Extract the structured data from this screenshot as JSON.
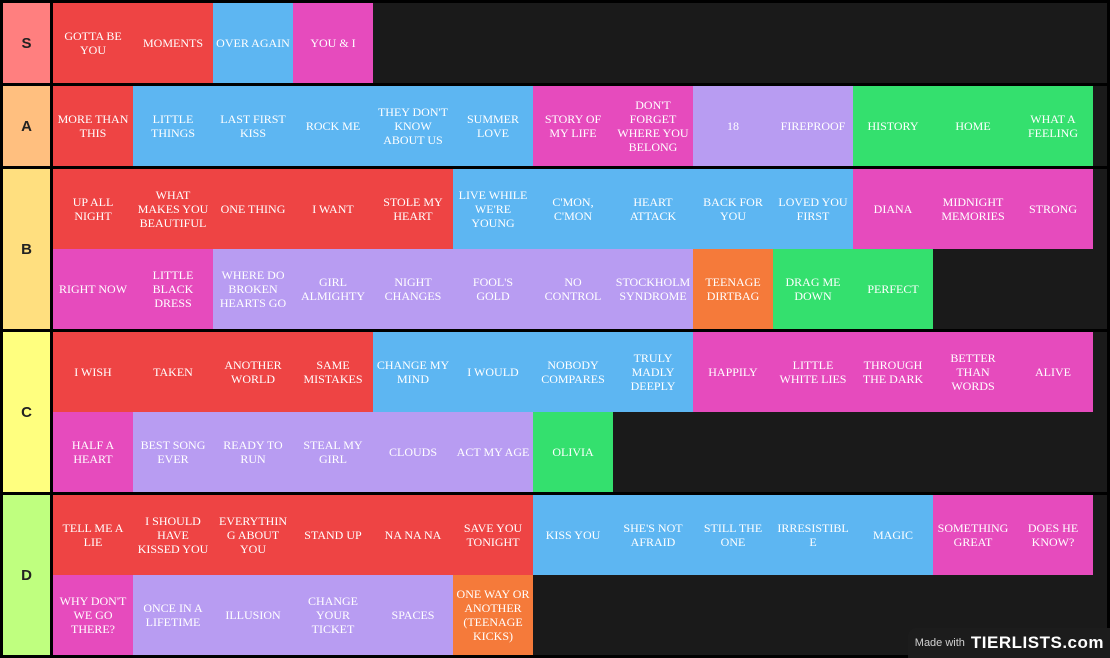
{
  "colors": {
    "red": "#ee4444",
    "blue": "#5db6f2",
    "pink": "#e64bbd",
    "purple": "#b89cf2",
    "green": "#34e06e",
    "orange": "#f57a3a"
  },
  "tiers": [
    {
      "label": "S",
      "color": "#ff7f7f",
      "items": [
        {
          "text": "GOTTA BE YOU",
          "color": "red"
        },
        {
          "text": "MOMENTS",
          "color": "red"
        },
        {
          "text": "OVER AGAIN",
          "color": "blue"
        },
        {
          "text": "YOU & I",
          "color": "pink"
        }
      ]
    },
    {
      "label": "A",
      "color": "#ffbf7f",
      "items": [
        {
          "text": "MORE THAN THIS",
          "color": "red"
        },
        {
          "text": "LITTLE THINGS",
          "color": "blue"
        },
        {
          "text": "LAST FIRST KISS",
          "color": "blue"
        },
        {
          "text": "ROCK ME",
          "color": "blue"
        },
        {
          "text": "THEY DON'T KNOW ABOUT US",
          "color": "blue"
        },
        {
          "text": "SUMMER LOVE",
          "color": "blue"
        },
        {
          "text": "STORY OF MY LIFE",
          "color": "pink"
        },
        {
          "text": "DON'T FORGET WHERE YOU BELONG",
          "color": "pink"
        },
        {
          "text": "18",
          "color": "purple"
        },
        {
          "text": "FIREPROOF",
          "color": "purple"
        },
        {
          "text": "HISTORY",
          "color": "green"
        },
        {
          "text": "HOME",
          "color": "green"
        },
        {
          "text": "WHAT A FEELING",
          "color": "green"
        }
      ]
    },
    {
      "label": "B",
      "color": "#ffdf7f",
      "items": [
        {
          "text": "UP ALL NIGHT",
          "color": "red"
        },
        {
          "text": "WHAT MAKES YOU BEAUTIFUL",
          "color": "red"
        },
        {
          "text": "ONE THING",
          "color": "red"
        },
        {
          "text": "I WANT",
          "color": "red"
        },
        {
          "text": "STOLE MY HEART",
          "color": "red"
        },
        {
          "text": "LIVE WHILE WE'RE YOUNG",
          "color": "blue"
        },
        {
          "text": "C'MON, C'MON",
          "color": "blue"
        },
        {
          "text": "HEART ATTACK",
          "color": "blue"
        },
        {
          "text": "BACK FOR YOU",
          "color": "blue"
        },
        {
          "text": "LOVED YOU FIRST",
          "color": "blue"
        },
        {
          "text": "DIANA",
          "color": "pink"
        },
        {
          "text": "MIDNIGHT MEMORIES",
          "color": "pink"
        },
        {
          "text": "STRONG",
          "color": "pink"
        },
        {
          "text": "RIGHT NOW",
          "color": "pink"
        },
        {
          "text": "LITTLE BLACK DRESS",
          "color": "pink"
        },
        {
          "text": "WHERE DO BROKEN HEARTS GO",
          "color": "purple"
        },
        {
          "text": "GIRL ALMIGHTY",
          "color": "purple"
        },
        {
          "text": "NIGHT CHANGES",
          "color": "purple"
        },
        {
          "text": "FOOL'S GOLD",
          "color": "purple"
        },
        {
          "text": "NO CONTROL",
          "color": "purple"
        },
        {
          "text": "STOCKHOLM SYNDROME",
          "color": "purple"
        },
        {
          "text": "TEENAGE DIRTBAG",
          "color": "orange"
        },
        {
          "text": "DRAG ME DOWN",
          "color": "green"
        },
        {
          "text": "PERFECT",
          "color": "green"
        }
      ]
    },
    {
      "label": "C",
      "color": "#ffff7f",
      "items": [
        {
          "text": "I WISH",
          "color": "red"
        },
        {
          "text": "TAKEN",
          "color": "red"
        },
        {
          "text": "ANOTHER WORLD",
          "color": "red"
        },
        {
          "text": "SAME MISTAKES",
          "color": "red"
        },
        {
          "text": "CHANGE MY MIND",
          "color": "blue"
        },
        {
          "text": "I WOULD",
          "color": "blue"
        },
        {
          "text": "NOBODY COMPARES",
          "color": "blue"
        },
        {
          "text": "TRULY MADLY DEEPLY",
          "color": "blue"
        },
        {
          "text": "HAPPILY",
          "color": "pink"
        },
        {
          "text": "LITTLE WHITE LIES",
          "color": "pink"
        },
        {
          "text": "THROUGH THE DARK",
          "color": "pink"
        },
        {
          "text": "BETTER THAN WORDS",
          "color": "pink"
        },
        {
          "text": "ALIVE",
          "color": "pink"
        },
        {
          "text": "HALF A HEART",
          "color": "pink"
        },
        {
          "text": "BEST SONG EVER",
          "color": "purple"
        },
        {
          "text": "READY TO RUN",
          "color": "purple"
        },
        {
          "text": "STEAL MY GIRL",
          "color": "purple"
        },
        {
          "text": "CLOUDS",
          "color": "purple"
        },
        {
          "text": "ACT MY AGE",
          "color": "purple"
        },
        {
          "text": "OLIVIA",
          "color": "green"
        }
      ]
    },
    {
      "label": "D",
      "color": "#bfff7f",
      "items": [
        {
          "text": "TELL ME A LIE",
          "color": "red"
        },
        {
          "text": "I SHOULD HAVE KISSED YOU",
          "color": "red"
        },
        {
          "text": "EVERYTHING ABOUT YOU",
          "color": "red"
        },
        {
          "text": "STAND UP",
          "color": "red"
        },
        {
          "text": "NA NA NA",
          "color": "red"
        },
        {
          "text": "SAVE YOU TONIGHT",
          "color": "red"
        },
        {
          "text": "KISS YOU",
          "color": "blue"
        },
        {
          "text": "SHE'S NOT AFRAID",
          "color": "blue"
        },
        {
          "text": "STILL THE ONE",
          "color": "blue"
        },
        {
          "text": "IRRESISTIBLE",
          "color": "blue"
        },
        {
          "text": "MAGIC",
          "color": "blue"
        },
        {
          "text": "SOMETHING GREAT",
          "color": "pink"
        },
        {
          "text": "DOES HE KNOW?",
          "color": "pink"
        },
        {
          "text": "WHY DON'T WE GO THERE?",
          "color": "pink"
        },
        {
          "text": "ONCE IN A LIFETIME",
          "color": "purple"
        },
        {
          "text": "ILLUSION",
          "color": "purple"
        },
        {
          "text": "CHANGE YOUR TICKET",
          "color": "purple"
        },
        {
          "text": "SPACES",
          "color": "purple"
        },
        {
          "text": "ONE WAY OR ANOTHER (TEENAGE KICKS)",
          "color": "orange"
        }
      ]
    }
  ],
  "watermark": {
    "prefix": "Made with",
    "brand": "TIERLISTS.com"
  }
}
